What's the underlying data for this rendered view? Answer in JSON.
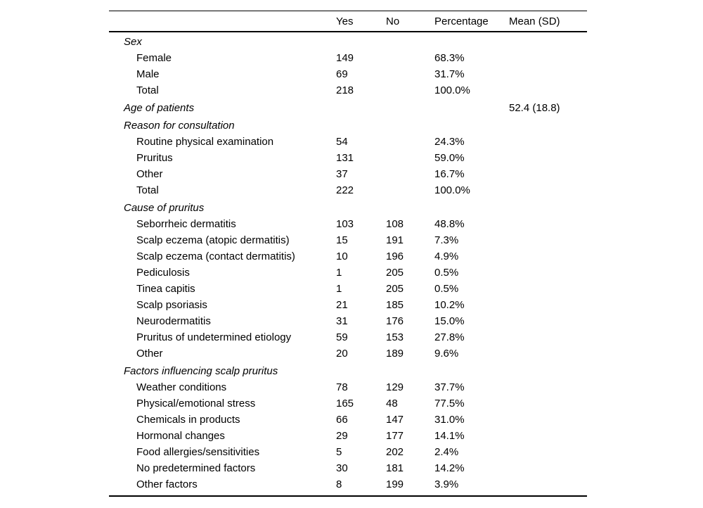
{
  "page": {
    "background_color": "#ffffff",
    "text_color": "#000000",
    "rule_color": "#000000"
  },
  "table": {
    "columns": {
      "label": "",
      "yes": "Yes",
      "no": "No",
      "percentage": "Percentage",
      "mean": "Mean (SD)"
    },
    "sections": [
      {
        "title": "Sex",
        "rows": [
          {
            "label": "Female",
            "yes": "149",
            "pct": "68.3%"
          },
          {
            "label": "Male",
            "yes": "69",
            "pct": "31.7%"
          },
          {
            "label": "Total",
            "yes": "218",
            "pct": "100.0%"
          }
        ]
      },
      {
        "title": "Age of patients",
        "mean": "52.4 (18.8)",
        "rows": []
      },
      {
        "title": "Reason for consultation",
        "rows": [
          {
            "label": "Routine physical examination",
            "yes": "54",
            "pct": "24.3%"
          },
          {
            "label": "Pruritus",
            "yes": "131",
            "pct": "59.0%"
          },
          {
            "label": "Other",
            "yes": "37",
            "pct": "16.7%"
          },
          {
            "label": "Total",
            "yes": "222",
            "pct": "100.0%"
          }
        ]
      },
      {
        "title": "Cause of pruritus",
        "rows": [
          {
            "label": "Seborrheic dermatitis",
            "yes": "103",
            "no": "108",
            "pct": "48.8%"
          },
          {
            "label": "Scalp eczema (atopic dermatitis)",
            "yes": "15",
            "no": "191",
            "pct": "7.3%"
          },
          {
            "label": "Scalp eczema (contact dermatitis)",
            "yes": "10",
            "no": "196",
            "pct": "4.9%"
          },
          {
            "label": "Pediculosis",
            "yes": "1",
            "no": "205",
            "pct": "0.5%"
          },
          {
            "label": "Tinea capitis",
            "yes": "1",
            "no": "205",
            "pct": "0.5%"
          },
          {
            "label": "Scalp psoriasis",
            "yes": "21",
            "no": "185",
            "pct": "10.2%"
          },
          {
            "label": "Neurodermatitis",
            "yes": "31",
            "no": "176",
            "pct": "15.0%"
          },
          {
            "label": "Pruritus of undetermined etiology",
            "yes": "59",
            "no": "153",
            "pct": "27.8%"
          },
          {
            "label": "Other",
            "yes": "20",
            "no": "189",
            "pct": "9.6%"
          }
        ]
      },
      {
        "title": "Factors influencing scalp pruritus",
        "rows": [
          {
            "label": "Weather conditions",
            "yes": "78",
            "no": "129",
            "pct": "37.7%"
          },
          {
            "label": "Physical/emotional stress",
            "yes": "165",
            "no": "48",
            "pct": "77.5%"
          },
          {
            "label": "Chemicals in products",
            "yes": "66",
            "no": "147",
            "pct": "31.0%"
          },
          {
            "label": "Hormonal changes",
            "yes": "29",
            "no": "177",
            "pct": "14.1%"
          },
          {
            "label": "Food allergies/sensitivities",
            "yes": "5",
            "no": "202",
            "pct": "2.4%"
          },
          {
            "label": "No predetermined factors",
            "yes": "30",
            "no": "181",
            "pct": "14.2%"
          },
          {
            "label": "Other factors",
            "yes": "8",
            "no": "199",
            "pct": "3.9%"
          }
        ]
      }
    ]
  }
}
